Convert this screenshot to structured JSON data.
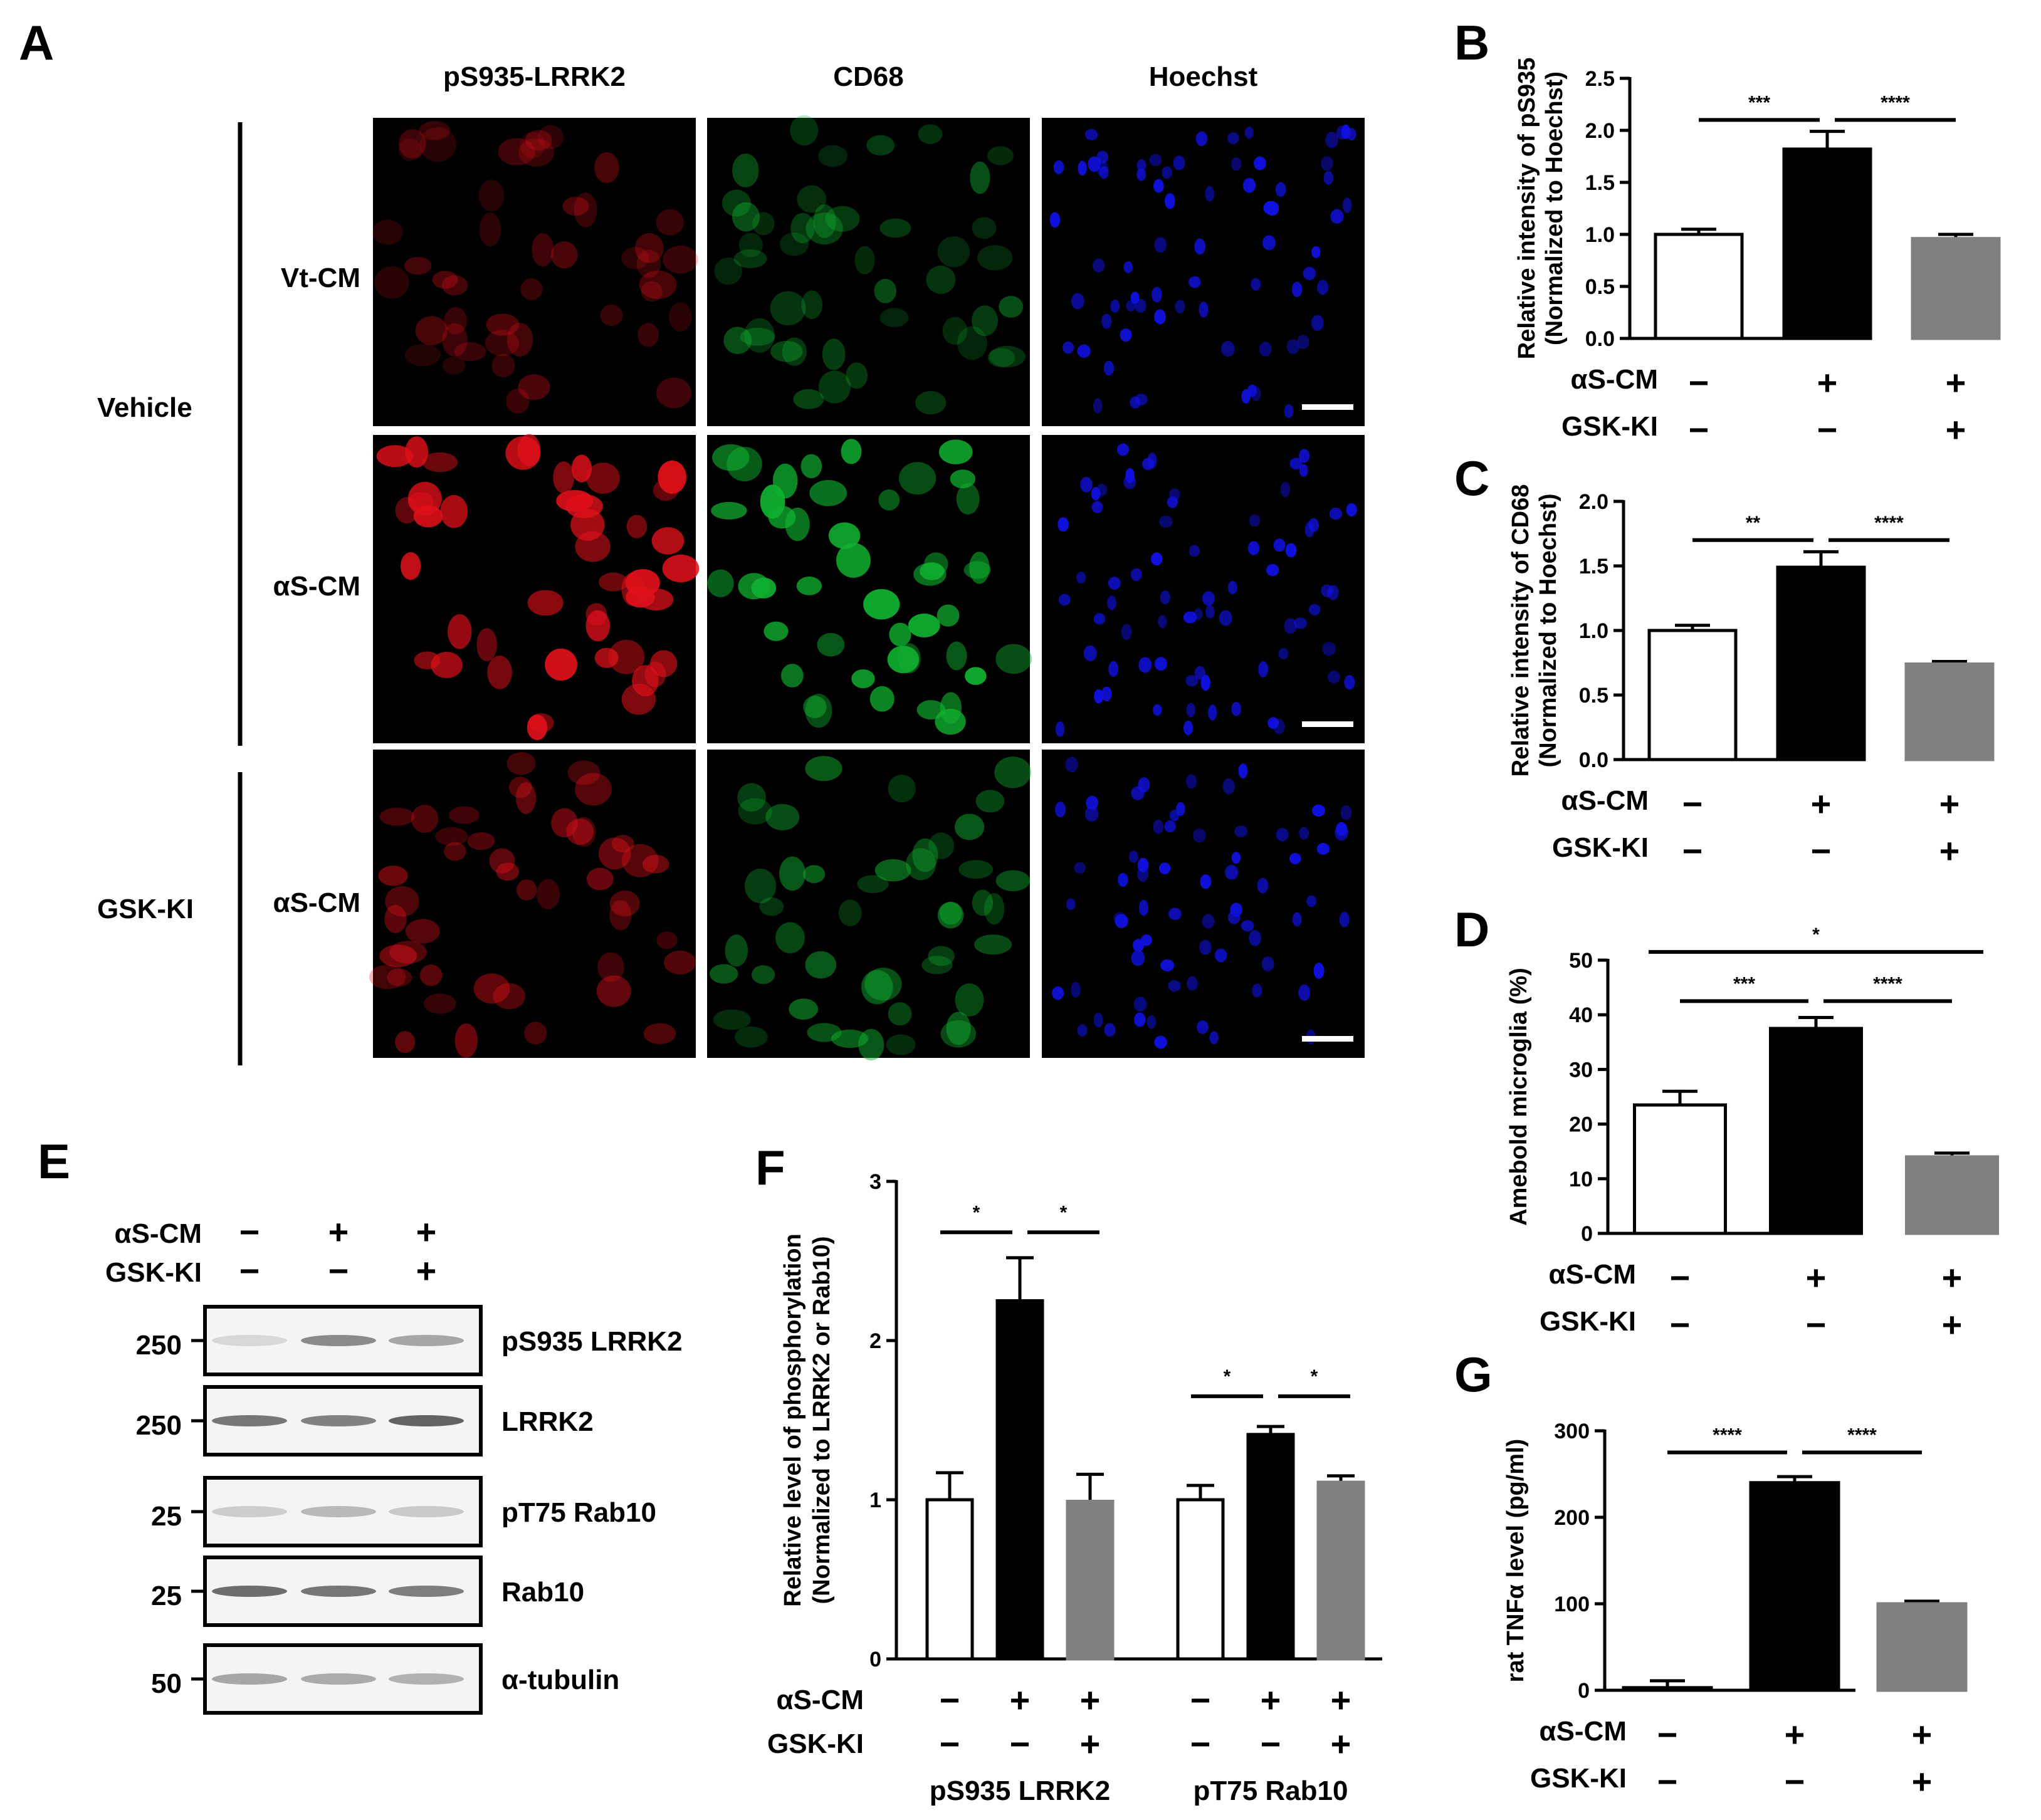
{
  "panel_letters": [
    "A",
    "B",
    "C",
    "D",
    "E",
    "F",
    "G"
  ],
  "colors": {
    "red_stain": "#e0101a",
    "green_stain": "#10b030",
    "blue_stain": "#1010e0",
    "bar_vehicle": "#ffffff",
    "bar_as": "#000000",
    "bar_gsk": "#808080"
  },
  "panel_a": {
    "channels": [
      "pS935-LRRK2",
      "CD68",
      "Hoechst"
    ],
    "channel_colors": [
      "#e0101a",
      "#10b030",
      "#1010e0"
    ],
    "groups": [
      {
        "label": "Vehicle",
        "rows": [
          "Vt-CM",
          "αS-CM"
        ]
      },
      {
        "label": "GSK-KI",
        "rows": [
          "αS-CM"
        ]
      }
    ],
    "cell_intensity": [
      [
        0.35,
        0.45,
        1.0
      ],
      [
        0.95,
        0.95,
        1.0
      ],
      [
        0.5,
        0.55,
        1.0
      ]
    ]
  },
  "treatment_labels": {
    "as_cm": "αS-CM",
    "gsk_ki": "GSK-KI",
    "minus": "−",
    "plus": "+"
  },
  "panel_e": {
    "rows": [
      {
        "kda": "250",
        "label": "pS935 LRRK2"
      },
      {
        "kda": "250",
        "label": "LRRK2"
      },
      {
        "kda": "25",
        "label": "pT75 Rab10"
      },
      {
        "kda": "25",
        "label": "Rab10"
      },
      {
        "kda": "50",
        "label": "α-tubulin"
      }
    ],
    "as_cm": [
      "−",
      "+",
      "+"
    ],
    "gsk_ki": [
      "−",
      "−",
      "+"
    ]
  },
  "chart_data": [
    {
      "panel": "B",
      "type": "bar",
      "categories": [
        "Vehicle",
        "αS-CM",
        "αS-CM + GSK-KI"
      ],
      "values": [
        1.0,
        1.82,
        0.96
      ],
      "errors": [
        0.05,
        0.17,
        0.04
      ],
      "ylabel": [
        "Relative intensity of pS935",
        "(Normalized to Hoechst)"
      ],
      "ylim": [
        0,
        2.5
      ],
      "yticks": [
        "0.0",
        "0.5",
        "1.0",
        "1.5",
        "2.0",
        "2.5"
      ],
      "as_cm": [
        "−",
        "+",
        "+"
      ],
      "gsk_ki": [
        "−",
        "−",
        "+"
      ],
      "significance": [
        {
          "from": 0,
          "to": 1,
          "label": "***",
          "level": 2.1
        },
        {
          "from": 1,
          "to": 2,
          "label": "****",
          "level": 2.1
        }
      ]
    },
    {
      "panel": "C",
      "type": "bar",
      "categories": [
        "Vehicle",
        "αS-CM",
        "αS-CM + GSK-KI"
      ],
      "values": [
        1.0,
        1.49,
        0.74
      ],
      "errors": [
        0.04,
        0.12,
        0.02
      ],
      "ylabel": [
        "Relative intensity of CD68",
        "(Normalized to Hoechst)"
      ],
      "ylim": [
        0,
        2.0
      ],
      "yticks": [
        "0.0",
        "0.5",
        "1.0",
        "1.5",
        "2.0"
      ],
      "as_cm": [
        "−",
        "+",
        "+"
      ],
      "gsk_ki": [
        "−",
        "−",
        "+"
      ],
      "significance": [
        {
          "from": 0,
          "to": 1,
          "label": "**",
          "level": 1.7
        },
        {
          "from": 1,
          "to": 2,
          "label": "****",
          "level": 1.7
        }
      ]
    },
    {
      "panel": "D",
      "type": "bar",
      "categories": [
        "Vehicle",
        "αS-CM",
        "αS-CM + GSK-KI"
      ],
      "values": [
        23.5,
        37.5,
        14.0
      ],
      "errors": [
        2.5,
        2.0,
        0.7
      ],
      "ylabel": [
        "Amebold microglia (%)"
      ],
      "ylim": [
        0,
        50
      ],
      "yticks": [
        "0",
        "10",
        "20",
        "30",
        "40",
        "50"
      ],
      "as_cm": [
        "−",
        "+",
        "+"
      ],
      "gsk_ki": [
        "−",
        "−",
        "+"
      ],
      "significance": [
        {
          "from": 0,
          "to": 2,
          "label": "*",
          "level": 51.5
        },
        {
          "from": 0,
          "to": 1,
          "label": "***",
          "level": 42.5
        },
        {
          "from": 1,
          "to": 2,
          "label": "****",
          "level": 42.5
        }
      ]
    },
    {
      "panel": "F",
      "type": "bar",
      "groups": [
        "pS935 LRRK2",
        "pT75 Rab10"
      ],
      "values": [
        [
          1.0,
          2.25,
          0.99
        ],
        [
          1.0,
          1.41,
          1.11
        ]
      ],
      "errors": [
        [
          0.17,
          0.27,
          0.17
        ],
        [
          0.09,
          0.05,
          0.04
        ]
      ],
      "ylabel": [
        "Relative level of phosphorylation",
        "(Normalized to LRRK2 or Rab10)"
      ],
      "ylim": [
        0,
        3
      ],
      "yticks": [
        "0",
        "1",
        "2",
        "3"
      ],
      "as_cm": [
        "−",
        "+",
        "+"
      ],
      "gsk_ki": [
        "−",
        "−",
        "+"
      ],
      "significance": [
        {
          "group": 0,
          "from": 0,
          "to": 1,
          "label": "*",
          "level": 2.68
        },
        {
          "group": 0,
          "from": 1,
          "to": 2,
          "label": "*",
          "level": 2.68
        },
        {
          "group": 1,
          "from": 0,
          "to": 1,
          "label": "*",
          "level": 1.65
        },
        {
          "group": 1,
          "from": 1,
          "to": 2,
          "label": "*",
          "level": 1.65
        }
      ]
    },
    {
      "panel": "G",
      "type": "bar",
      "categories": [
        "Vehicle",
        "αS-CM",
        "αS-CM + GSK-KI"
      ],
      "values": [
        3,
        240,
        100
      ],
      "errors": [
        8,
        7,
        3
      ],
      "ylabel": [
        "rat TNFα level (pg/ml)"
      ],
      "ylim": [
        0,
        300
      ],
      "yticks": [
        "0",
        "100",
        "200",
        "300"
      ],
      "as_cm": [
        "−",
        "+",
        "+"
      ],
      "gsk_ki": [
        "−",
        "−",
        "+"
      ],
      "significance": [
        {
          "from": 0,
          "to": 1,
          "label": "****",
          "level": 275
        },
        {
          "from": 1,
          "to": 2,
          "label": "****",
          "level": 275
        }
      ]
    }
  ]
}
